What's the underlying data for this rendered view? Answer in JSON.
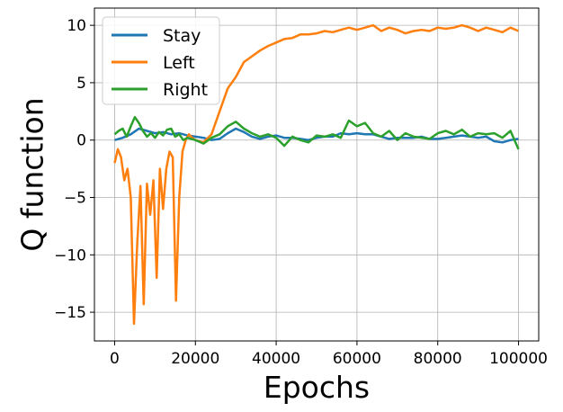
{
  "chart_data": {
    "type": "line",
    "title": "",
    "xlabel": "Epochs",
    "ylabel": "Q function",
    "xlim": [
      -5000,
      105000
    ],
    "ylim": [
      -17.5,
      11.5
    ],
    "xticks": [
      0,
      20000,
      40000,
      60000,
      80000,
      100000
    ],
    "xtick_labels": [
      "0",
      "20000",
      "40000",
      "60000",
      "80000",
      "100000"
    ],
    "yticks": [
      10,
      5,
      0,
      -5,
      -10,
      -15
    ],
    "ytick_labels": [
      "10",
      "5",
      "0",
      "−5",
      "−10",
      "−15"
    ],
    "grid": true,
    "legend_position": "upper-left",
    "series": [
      {
        "name": "Stay",
        "color": "#1f77b4",
        "x": [
          0,
          2000,
          4000,
          6000,
          8000,
          10000,
          12000,
          14000,
          16000,
          18000,
          20000,
          22000,
          24000,
          26000,
          28000,
          30000,
          32000,
          34000,
          36000,
          38000,
          40000,
          42000,
          44000,
          46000,
          48000,
          50000,
          52000,
          54000,
          56000,
          58000,
          60000,
          62000,
          64000,
          66000,
          68000,
          70000,
          72000,
          74000,
          76000,
          78000,
          80000,
          82000,
          84000,
          86000,
          88000,
          90000,
          92000,
          94000,
          96000,
          98000,
          100000
        ],
        "y": [
          0.0,
          0.2,
          0.5,
          1.0,
          0.8,
          0.6,
          0.7,
          0.5,
          0.6,
          0.4,
          0.3,
          0.2,
          0.0,
          0.1,
          0.6,
          1.0,
          0.7,
          0.3,
          0.1,
          0.3,
          0.4,
          0.2,
          0.2,
          0.1,
          0.0,
          0.2,
          0.3,
          0.3,
          0.6,
          0.5,
          0.6,
          0.5,
          0.5,
          0.3,
          0.1,
          0.2,
          0.2,
          0.2,
          0.3,
          0.1,
          0.1,
          0.2,
          0.3,
          0.4,
          0.3,
          0.2,
          0.3,
          -0.1,
          -0.2,
          0.0,
          0.1
        ]
      },
      {
        "name": "Left",
        "color": "#ff7f0e",
        "x": [
          0,
          800,
          1600,
          2400,
          3200,
          4000,
          4800,
          5600,
          6400,
          7200,
          8000,
          8800,
          9600,
          10400,
          11200,
          12000,
          12800,
          13600,
          14400,
          15200,
          16000,
          16800,
          17600,
          18400,
          19200,
          20000,
          22000,
          24000,
          26000,
          28000,
          30000,
          32000,
          34000,
          36000,
          38000,
          40000,
          42000,
          44000,
          46000,
          48000,
          50000,
          52000,
          54000,
          56000,
          58000,
          60000,
          62000,
          64000,
          66000,
          68000,
          70000,
          72000,
          74000,
          76000,
          78000,
          80000,
          82000,
          84000,
          86000,
          88000,
          90000,
          92000,
          94000,
          96000,
          98000,
          100000
        ],
        "y": [
          -2.0,
          -0.8,
          -1.5,
          -3.5,
          -2.5,
          -5.0,
          -16.0,
          -9.0,
          -4.0,
          -14.3,
          -3.8,
          -6.5,
          -3.5,
          -12.0,
          -2.5,
          -6.0,
          -2.5,
          -1.0,
          -1.5,
          -14.0,
          -5.0,
          -1.0,
          0.0,
          0.5,
          0.2,
          0.0,
          -0.2,
          0.5,
          2.5,
          4.5,
          5.5,
          6.8,
          7.3,
          7.8,
          8.2,
          8.5,
          8.8,
          8.9,
          9.2,
          9.2,
          9.3,
          9.5,
          9.4,
          9.6,
          9.8,
          9.6,
          9.8,
          10.0,
          9.5,
          9.8,
          9.6,
          9.3,
          9.5,
          9.6,
          9.5,
          9.8,
          9.7,
          9.8,
          10.0,
          9.8,
          9.5,
          9.8,
          9.6,
          9.4,
          9.8,
          9.5
        ]
      },
      {
        "name": "Right",
        "color": "#2ca02c",
        "x": [
          0,
          1000,
          2000,
          3000,
          4000,
          5000,
          6000,
          7000,
          8000,
          9000,
          10000,
          11000,
          12000,
          13000,
          14000,
          15000,
          16000,
          17000,
          18000,
          19000,
          20000,
          22000,
          24000,
          26000,
          28000,
          30000,
          32000,
          34000,
          36000,
          38000,
          40000,
          42000,
          44000,
          46000,
          48000,
          50000,
          52000,
          54000,
          56000,
          58000,
          60000,
          62000,
          64000,
          66000,
          68000,
          70000,
          72000,
          74000,
          76000,
          78000,
          80000,
          82000,
          84000,
          86000,
          88000,
          90000,
          92000,
          94000,
          96000,
          98000,
          100000
        ],
        "y": [
          0.5,
          0.8,
          1.0,
          0.3,
          1.2,
          2.0,
          1.5,
          0.8,
          0.3,
          0.6,
          0.2,
          0.7,
          0.4,
          0.9,
          1.0,
          0.3,
          0.5,
          0.0,
          0.2,
          0.1,
          0.0,
          -0.3,
          0.2,
          0.5,
          1.2,
          1.6,
          1.0,
          0.6,
          0.3,
          0.5,
          0.2,
          -0.5,
          0.3,
          0.0,
          -0.2,
          0.4,
          0.3,
          0.5,
          0.2,
          1.7,
          1.2,
          1.5,
          0.6,
          0.3,
          0.8,
          0.0,
          0.6,
          0.3,
          0.2,
          0.1,
          0.6,
          0.8,
          0.5,
          0.9,
          0.3,
          0.6,
          0.5,
          0.6,
          0.2,
          0.8,
          -0.8
        ]
      }
    ]
  }
}
